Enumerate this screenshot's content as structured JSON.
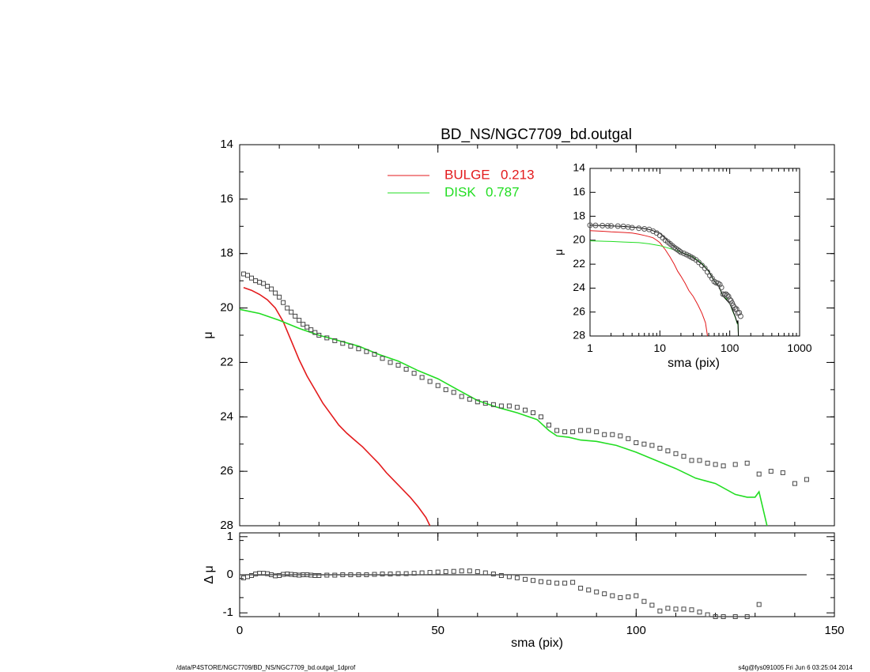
{
  "colors": {
    "bulge": "#e31a1c",
    "disk": "#22dd22",
    "data": "#444444",
    "axes": "#000000"
  },
  "footer": {
    "left": "/data/P4STORE/NGC7709/BD_NS/NGC7709_bd.outgal_1dprof",
    "right": "s4g@fys091005  Fri Jun  6 03:25:04 2014"
  },
  "chart_data": [
    {
      "type": "scatter",
      "title": "BD_NS/NGC7709_bd.outgal",
      "xlabel": "",
      "ylabel": "μ",
      "xlim": [
        0,
        150
      ],
      "ylim": [
        28,
        14
      ],
      "y_ticks": [
        "14",
        "16",
        "18",
        "20",
        "22",
        "24",
        "26",
        "28"
      ],
      "legend_placement": "top-center",
      "legend": [
        {
          "name": "BULGE",
          "value": "0.213",
          "color": "#e31a1c"
        },
        {
          "name": "DISK",
          "value": "0.787",
          "color": "#22dd22"
        }
      ],
      "series": [
        {
          "name": "BULGE",
          "kind": "line",
          "x": [
            1,
            3,
            5,
            7,
            9,
            11,
            13,
            15,
            17,
            19,
            21,
            23,
            25,
            27,
            29,
            31,
            33,
            35,
            37,
            39,
            41,
            43,
            45,
            47,
            48
          ],
          "y": [
            19.25,
            19.35,
            19.5,
            19.7,
            20.0,
            20.5,
            21.2,
            21.9,
            22.5,
            23.0,
            23.5,
            23.9,
            24.3,
            24.6,
            24.85,
            25.1,
            25.4,
            25.7,
            26.05,
            26.35,
            26.65,
            26.95,
            27.3,
            27.7,
            28.0
          ]
        },
        {
          "name": "DISK",
          "kind": "line",
          "x": [
            0,
            5,
            10,
            15,
            20,
            25,
            30,
            35,
            40,
            45,
            50,
            55,
            60,
            65,
            70,
            75,
            78,
            80,
            83,
            86,
            90,
            95,
            100,
            105,
            110,
            115,
            120,
            125,
            128,
            130,
            131,
            133
          ],
          "y": [
            20.05,
            20.2,
            20.45,
            20.75,
            21.0,
            21.2,
            21.4,
            21.7,
            21.95,
            22.3,
            22.6,
            23.0,
            23.4,
            23.65,
            23.85,
            24.1,
            24.5,
            24.7,
            24.75,
            24.85,
            24.9,
            25.05,
            25.3,
            25.6,
            25.9,
            26.25,
            26.45,
            26.85,
            26.95,
            26.95,
            26.75,
            28.0
          ]
        },
        {
          "name": "data",
          "kind": "points",
          "x": [
            1,
            2,
            3,
            4,
            5,
            6,
            7,
            8,
            9,
            10,
            11,
            12,
            13,
            14,
            15,
            16,
            17,
            18,
            19,
            20,
            22,
            24,
            26,
            28,
            30,
            32,
            34,
            36,
            38,
            40,
            42,
            44,
            46,
            48,
            50,
            52,
            54,
            56,
            58,
            60,
            62,
            64,
            66,
            68,
            70,
            72,
            74,
            76,
            78,
            80,
            82,
            84,
            86,
            88,
            90,
            92,
            94,
            96,
            98,
            100,
            102,
            104,
            106,
            108,
            110,
            112,
            114,
            116,
            118,
            120,
            122,
            125,
            128,
            131,
            134,
            137,
            140,
            143
          ],
          "y": [
            18.75,
            18.8,
            18.9,
            19.0,
            19.05,
            19.1,
            19.2,
            19.3,
            19.45,
            19.6,
            19.8,
            20.0,
            20.15,
            20.3,
            20.45,
            20.6,
            20.7,
            20.8,
            20.9,
            21.0,
            21.1,
            21.2,
            21.3,
            21.4,
            21.5,
            21.6,
            21.7,
            21.85,
            22.0,
            22.1,
            22.25,
            22.4,
            22.55,
            22.7,
            22.85,
            23.0,
            23.1,
            23.25,
            23.35,
            23.45,
            23.5,
            23.55,
            23.6,
            23.6,
            23.65,
            23.75,
            23.85,
            24.0,
            24.3,
            24.5,
            24.55,
            24.55,
            24.5,
            24.5,
            24.55,
            24.65,
            24.65,
            24.7,
            24.8,
            24.95,
            25.0,
            25.05,
            25.15,
            25.25,
            25.35,
            25.45,
            25.6,
            25.6,
            25.7,
            25.75,
            25.8,
            25.75,
            25.7,
            26.1,
            26.0,
            26.05,
            26.45,
            26.3
          ]
        }
      ]
    },
    {
      "type": "scatter",
      "title": "",
      "xlabel": "sma (pix)",
      "ylabel": "Δ μ",
      "xlim": [
        0,
        150
      ],
      "ylim": [
        -1.1,
        1.1
      ],
      "x_ticks": [
        "0",
        "50",
        "100",
        "150"
      ],
      "y_ticks": [
        "1",
        "0",
        "-1"
      ],
      "series": [
        {
          "name": "residual",
          "kind": "points",
          "x": [
            1,
            2,
            3,
            4,
            5,
            6,
            7,
            8,
            9,
            10,
            11,
            12,
            13,
            14,
            15,
            16,
            17,
            18,
            19,
            20,
            22,
            24,
            26,
            28,
            30,
            32,
            34,
            36,
            38,
            40,
            42,
            44,
            46,
            48,
            50,
            52,
            54,
            56,
            58,
            60,
            62,
            64,
            66,
            68,
            70,
            72,
            74,
            76,
            78,
            80,
            82,
            84,
            86,
            88,
            90,
            92,
            94,
            96,
            98,
            100,
            102,
            104,
            106,
            108,
            110,
            112,
            114,
            116,
            118,
            120,
            122,
            125,
            128,
            131
          ],
          "y": [
            -0.08,
            -0.05,
            -0.02,
            0.02,
            0.04,
            0.04,
            0.03,
            0.0,
            -0.03,
            -0.02,
            0.01,
            0.02,
            0.01,
            0.0,
            -0.01,
            0.0,
            0.0,
            -0.01,
            -0.02,
            -0.02,
            -0.01,
            -0.01,
            0.0,
            0.0,
            0.0,
            0.0,
            0.01,
            0.02,
            0.02,
            0.03,
            0.03,
            0.04,
            0.05,
            0.06,
            0.07,
            0.08,
            0.09,
            0.1,
            0.1,
            0.08,
            0.05,
            0.02,
            -0.02,
            -0.05,
            -0.08,
            -0.12,
            -0.15,
            -0.18,
            -0.2,
            -0.22,
            -0.22,
            -0.2,
            -0.35,
            -0.4,
            -0.45,
            -0.5,
            -0.55,
            -0.6,
            -0.58,
            -0.55,
            -0.7,
            -0.8,
            -0.95,
            -0.88,
            -0.9,
            -0.9,
            -0.92,
            -0.98,
            -1.05,
            -1.1,
            -1.1,
            -1.1,
            -1.1,
            -0.78
          ]
        },
        {
          "name": "zero",
          "kind": "line",
          "x": [
            0,
            143
          ],
          "y": [
            0,
            0
          ]
        }
      ]
    },
    {
      "type": "scatter",
      "title": "",
      "xlabel": "sma (pix)",
      "ylabel": "μ",
      "xscale": "log",
      "xlim": [
        1,
        1000
      ],
      "ylim": [
        28,
        14
      ],
      "x_ticks": [
        "1",
        "10",
        "100",
        "1000"
      ],
      "y_ticks": [
        "14",
        "16",
        "18",
        "20",
        "22",
        "24",
        "26",
        "28"
      ],
      "series": [
        {
          "name": "BULGE",
          "kind": "line",
          "x": [
            1,
            1.5,
            2,
            3,
            4,
            5,
            6,
            7,
            8,
            9,
            10,
            12,
            14,
            16,
            18,
            20,
            23,
            26,
            30,
            35,
            40,
            45,
            48
          ],
          "y": [
            19.2,
            19.25,
            19.3,
            19.35,
            19.4,
            19.5,
            19.6,
            19.7,
            19.8,
            20.0,
            20.2,
            20.8,
            21.4,
            22.0,
            22.6,
            23.0,
            23.6,
            24.2,
            24.7,
            25.4,
            26.1,
            26.9,
            28.0
          ]
        },
        {
          "name": "DISK",
          "kind": "line",
          "x": [
            1,
            2,
            3,
            5,
            7,
            10,
            15,
            20,
            30,
            40,
            50,
            60,
            70,
            80,
            90,
            100,
            110,
            120,
            128,
            131,
            133
          ],
          "y": [
            20.05,
            20.1,
            20.15,
            20.2,
            20.3,
            20.45,
            20.75,
            21.0,
            21.4,
            21.95,
            22.6,
            23.4,
            23.85,
            24.7,
            24.9,
            25.3,
            25.9,
            26.45,
            26.95,
            26.75,
            28.0
          ]
        },
        {
          "name": "model",
          "kind": "line",
          "x": [
            1,
            2,
            3,
            5,
            7,
            10,
            15,
            20,
            30,
            40,
            50,
            60,
            70,
            80,
            100,
            120,
            128,
            131,
            133
          ],
          "y": [
            18.75,
            18.8,
            18.85,
            18.95,
            19.1,
            19.4,
            20.4,
            21.0,
            21.45,
            22.0,
            22.6,
            23.4,
            23.85,
            24.65,
            25.3,
            26.4,
            26.9,
            26.7,
            28.0
          ]
        },
        {
          "name": "data",
          "kind": "points",
          "x": [
            1,
            1.2,
            1.5,
            1.8,
            2,
            2.5,
            3,
            3.5,
            4,
            5,
            6,
            7,
            8,
            9,
            10,
            11,
            12,
            13,
            14,
            15,
            16,
            17,
            18,
            19,
            20,
            22,
            24,
            26,
            28,
            30,
            33,
            36,
            40,
            44,
            48,
            52,
            56,
            60,
            64,
            68,
            72,
            76,
            80,
            84,
            88,
            92,
            96,
            100,
            104,
            108,
            112,
            116,
            120,
            125,
            131,
            137,
            143
          ],
          "y": [
            18.75,
            18.76,
            18.78,
            18.8,
            18.8,
            18.82,
            18.85,
            18.9,
            18.95,
            19.0,
            19.05,
            19.1,
            19.25,
            19.4,
            19.6,
            19.8,
            20.0,
            20.15,
            20.3,
            20.45,
            20.6,
            20.7,
            20.8,
            20.9,
            21.0,
            21.1,
            21.2,
            21.3,
            21.4,
            21.5,
            21.65,
            21.85,
            22.1,
            22.35,
            22.65,
            22.95,
            23.2,
            23.45,
            23.55,
            23.6,
            23.7,
            23.95,
            24.5,
            24.55,
            24.5,
            24.6,
            24.7,
            24.95,
            25.05,
            25.25,
            25.45,
            25.6,
            25.75,
            25.75,
            26.1,
            26.05,
            26.35
          ]
        }
      ]
    }
  ]
}
